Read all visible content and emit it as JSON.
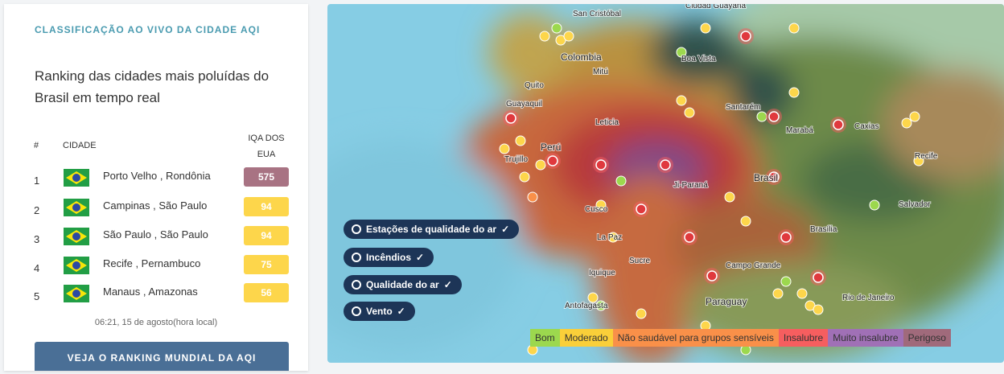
{
  "panel": {
    "heading": "CLASSIFICAÇÃO AO VIVO DA CIDADE AQI",
    "title": "Ranking das cidades mais poluídas do Brasil em tempo real",
    "timestamp": "06:21, 15 de agosto(hora local)",
    "button": "VEJA O RANKING MUNDIAL DA AQI"
  },
  "table": {
    "headers": [
      "#",
      "CIDADE",
      "IQA DOS EUA"
    ],
    "rows": [
      {
        "rank": 1,
        "city": "Porto Velho , Rondônia",
        "aqi": 575,
        "color": "#a87383"
      },
      {
        "rank": 2,
        "city": "Campinas , São Paulo",
        "aqi": 94,
        "color": "#fdd64b"
      },
      {
        "rank": 3,
        "city": "São Paulo , São Paulo",
        "aqi": 94,
        "color": "#fdd64b"
      },
      {
        "rank": 4,
        "city": "Recife , Pernambuco",
        "aqi": 75,
        "color": "#fdd64b"
      },
      {
        "rank": 5,
        "city": "Manaus , Amazonas",
        "aqi": 56,
        "color": "#fdd64b"
      }
    ]
  },
  "map": {
    "places": [
      "San Cristóbal",
      "Ciudad Guayana",
      "Colombia",
      "Boa Vista",
      "Mitú",
      "Quito",
      "Guayaquil",
      "Santarém",
      "Marabá",
      "Caxias",
      "Leticia",
      "Perú",
      "Trujillo",
      "Ji-Paraná",
      "Brasil",
      "Salvador",
      "Cusco",
      "La Paz",
      "Sucre",
      "Brasília",
      "Campo Grande",
      "Iquique",
      "Antofagasta",
      "Paraguay",
      "Rio de Janeiro",
      "Recife"
    ],
    "toggles": [
      "Estações de qualidade do ar",
      "Incêndios",
      "Qualidade do ar",
      "Vento"
    ],
    "legend": [
      {
        "label": "Bom",
        "color": "#9cd84e"
      },
      {
        "label": "Moderado",
        "color": "#facf39"
      },
      {
        "label": "Não saudável para grupos sensíveis",
        "color": "#f99049"
      },
      {
        "label": "Insalubre",
        "color": "#f65e5f"
      },
      {
        "label": "Muito insalubre",
        "color": "#a070b6"
      },
      {
        "label": "Perigoso",
        "color": "#a06a7b"
      }
    ]
  }
}
